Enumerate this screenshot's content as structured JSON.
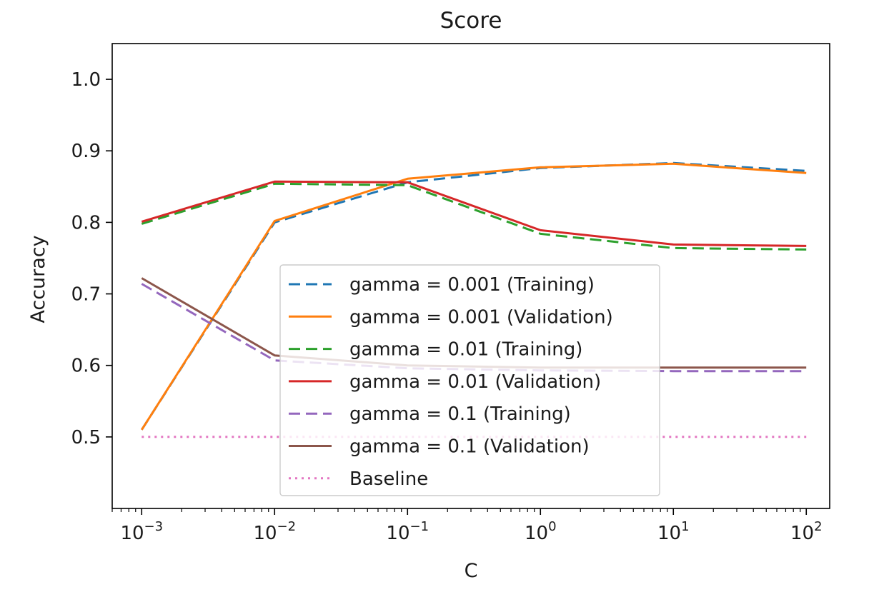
{
  "chart_data": {
    "type": "line",
    "title": "Score",
    "xlabel": "C",
    "ylabel": "Accuracy",
    "xscale": "log",
    "x": [
      0.001,
      0.01,
      0.1,
      1,
      10,
      100
    ],
    "xlim": [
      0.0006,
      150
    ],
    "ylim": [
      0.4,
      1.05
    ],
    "y_ticks": [
      0.5,
      0.6,
      0.7,
      0.8,
      0.9,
      1.0
    ],
    "y_tick_labels": [
      "0.5",
      "0.6",
      "0.7",
      "0.8",
      "0.9",
      "1.0"
    ],
    "x_tick_labels": [
      {
        "base": "10",
        "exp": "−3"
      },
      {
        "base": "10",
        "exp": "−2"
      },
      {
        "base": "10",
        "exp": "−1"
      },
      {
        "base": "10",
        "exp": "0"
      },
      {
        "base": "10",
        "exp": "1"
      },
      {
        "base": "10",
        "exp": "2"
      }
    ],
    "grid": false,
    "legend_position": "lower-center",
    "series": [
      {
        "name": "gamma = 0.001 (Training)",
        "color": "#1f77b4",
        "style": "dashed",
        "values": [
          0.51,
          0.8,
          0.856,
          0.876,
          0.883,
          0.872
        ]
      },
      {
        "name": "gamma = 0.001 (Validation)",
        "color": "#ff7f0e",
        "style": "solid",
        "values": [
          0.51,
          0.802,
          0.861,
          0.877,
          0.882,
          0.869
        ]
      },
      {
        "name": "gamma = 0.01 (Training)",
        "color": "#2ca02c",
        "style": "dashed",
        "values": [
          0.798,
          0.854,
          0.852,
          0.784,
          0.764,
          0.762
        ]
      },
      {
        "name": "gamma = 0.01 (Validation)",
        "color": "#d62728",
        "style": "solid",
        "values": [
          0.801,
          0.857,
          0.856,
          0.789,
          0.769,
          0.767
        ]
      },
      {
        "name": "gamma = 0.1 (Training)",
        "color": "#9467bd",
        "style": "dashed",
        "values": [
          0.714,
          0.607,
          0.596,
          0.593,
          0.592,
          0.592
        ]
      },
      {
        "name": "gamma = 0.1 (Validation)",
        "color": "#8c564b",
        "style": "solid",
        "values": [
          0.722,
          0.614,
          0.6,
          0.597,
          0.597,
          0.597
        ]
      },
      {
        "name": "Baseline",
        "color": "#e377c2",
        "style": "dotted",
        "values": [
          0.5,
          0.5,
          0.5,
          0.5,
          0.5,
          0.5
        ]
      }
    ]
  }
}
